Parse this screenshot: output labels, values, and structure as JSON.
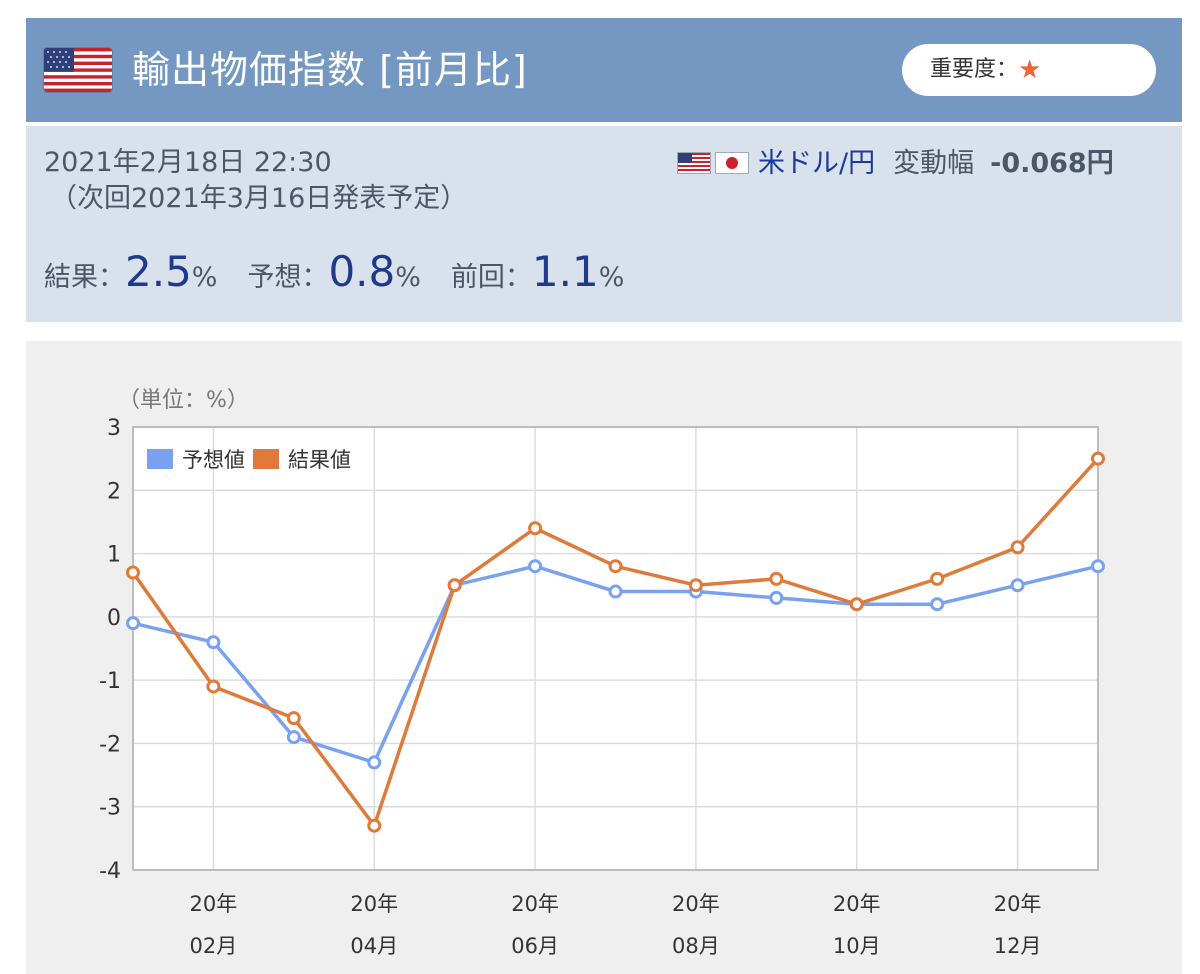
{
  "header": {
    "title": "輸出物価指数 [前月比]",
    "importance_label": "重要度：",
    "importance_star": "★",
    "flag_icon": "us-flag-icon"
  },
  "info": {
    "date": "2021年2月18日 22:30",
    "next_release": "（次回2021年3月16日発表予定）",
    "pair": "米ドル/円",
    "range_label": "変動幅",
    "range_value": "-0.068円",
    "result_label": "結果：",
    "result_value": "2.5",
    "forecast_label": "予想：",
    "forecast_value": "0.8",
    "previous_label": "前回：",
    "previous_value": "1.1",
    "unit": "%"
  },
  "chart_data": {
    "type": "line",
    "unit_label": "（単位：%）",
    "x": [
      "2020-01",
      "2020-02",
      "2020-03",
      "2020-04",
      "2020-05",
      "2020-06",
      "2020-07",
      "2020-08",
      "2020-09",
      "2020-10",
      "2020-11",
      "2020-12",
      "2021-01"
    ],
    "tick_labels": [
      {
        "year": "20年",
        "month": "02月",
        "index": 1
      },
      {
        "year": "20年",
        "month": "04月",
        "index": 3
      },
      {
        "year": "20年",
        "month": "06月",
        "index": 5
      },
      {
        "year": "20年",
        "month": "08月",
        "index": 7
      },
      {
        "year": "20年",
        "month": "10月",
        "index": 9
      },
      {
        "year": "20年",
        "month": "12月",
        "index": 11
      }
    ],
    "series": [
      {
        "name": "予想値",
        "color": "#7aa0f0",
        "values": [
          -0.1,
          -0.4,
          -1.9,
          -2.3,
          0.5,
          0.8,
          0.4,
          0.4,
          0.3,
          0.2,
          0.2,
          0.5,
          0.8
        ]
      },
      {
        "name": "結果値",
        "color": "#e07a3a",
        "values": [
          0.7,
          -1.1,
          -1.6,
          -3.3,
          0.5,
          1.4,
          0.8,
          0.5,
          0.6,
          0.2,
          0.6,
          1.1,
          2.5
        ]
      }
    ],
    "ylim": [
      -4,
      3
    ],
    "yticks": [
      "3",
      "2",
      "1",
      "0",
      "-1",
      "-2",
      "-3",
      "-4"
    ],
    "grid": true,
    "legend": "top-left"
  }
}
